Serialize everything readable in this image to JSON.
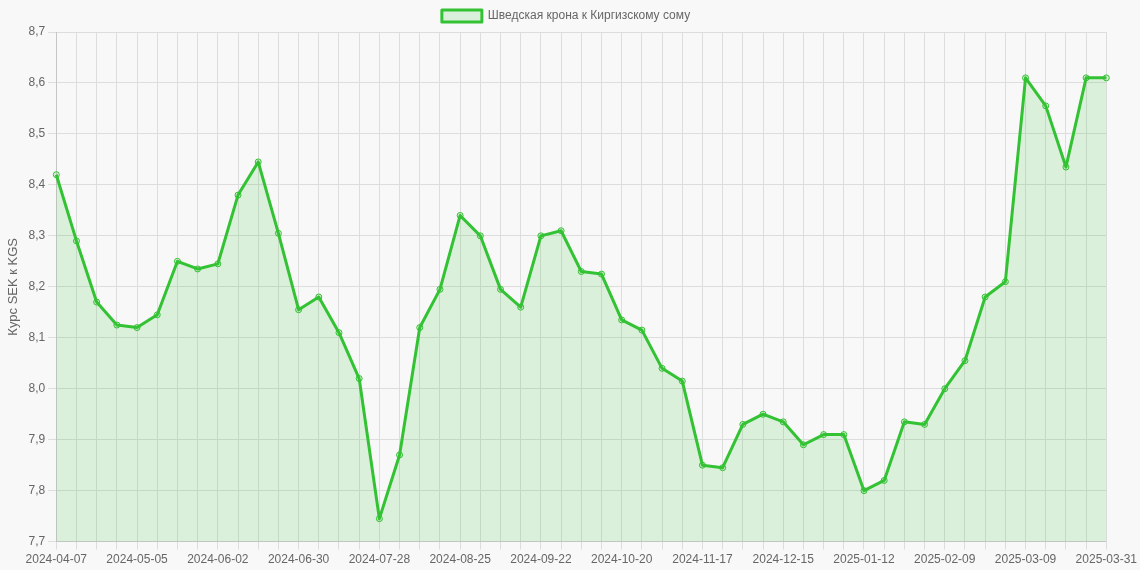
{
  "chart_data": {
    "type": "area",
    "ylabel": "Курс SEK к KGS",
    "categories": [
      "2024-04-07",
      null,
      null,
      null,
      "2024-05-05",
      null,
      null,
      null,
      "2024-06-02",
      null,
      null,
      null,
      "2024-06-30",
      null,
      null,
      null,
      "2024-07-28",
      null,
      null,
      null,
      "2024-08-25",
      null,
      null,
      null,
      "2024-09-22",
      null,
      null,
      null,
      "2024-10-20",
      null,
      null,
      null,
      "2024-11-17",
      null,
      null,
      null,
      "2024-12-15",
      null,
      null,
      null,
      "2025-01-12",
      null,
      null,
      null,
      "2025-02-09",
      null,
      null,
      null,
      "2025-03-09",
      null,
      null,
      null,
      "2025-03-31"
    ],
    "series": [
      {
        "name": "Шведская крона к Киргизскому сому",
        "color": "#33c233",
        "values": [
          8.42,
          8.29,
          8.17,
          8.125,
          8.12,
          8.145,
          8.25,
          8.235,
          8.245,
          8.38,
          8.445,
          8.305,
          8.155,
          8.18,
          8.11,
          8.02,
          7.745,
          7.87,
          8.12,
          8.195,
          8.34,
          8.3,
          8.195,
          8.16,
          8.3,
          8.31,
          8.23,
          8.225,
          8.135,
          8.115,
          8.04,
          8.015,
          7.85,
          7.845,
          7.93,
          7.95,
          7.935,
          7.89,
          7.91,
          7.91,
          7.8,
          7.82,
          7.935,
          7.93,
          8.0,
          8.055,
          8.18,
          8.21,
          8.61,
          8.555,
          8.435,
          8.61,
          8.61
        ]
      }
    ],
    "ylim": [
      7.7,
      8.7
    ],
    "yticks": [
      {
        "value": 7.7,
        "label": "7,7"
      },
      {
        "value": 7.8,
        "label": "7,8"
      },
      {
        "value": 7.9,
        "label": "7,9"
      },
      {
        "value": 8.0,
        "label": "8,0"
      },
      {
        "value": 8.1,
        "label": "8,1"
      },
      {
        "value": 8.2,
        "label": "8,2"
      },
      {
        "value": 8.3,
        "label": "8,3"
      },
      {
        "value": 8.4,
        "label": "8,4"
      },
      {
        "value": 8.5,
        "label": "8,5"
      },
      {
        "value": 8.6,
        "label": "8,6"
      },
      {
        "value": 8.7,
        "label": "8,7"
      }
    ],
    "grid": true,
    "legend": "top",
    "marker": "circle",
    "line_style": "solid"
  }
}
